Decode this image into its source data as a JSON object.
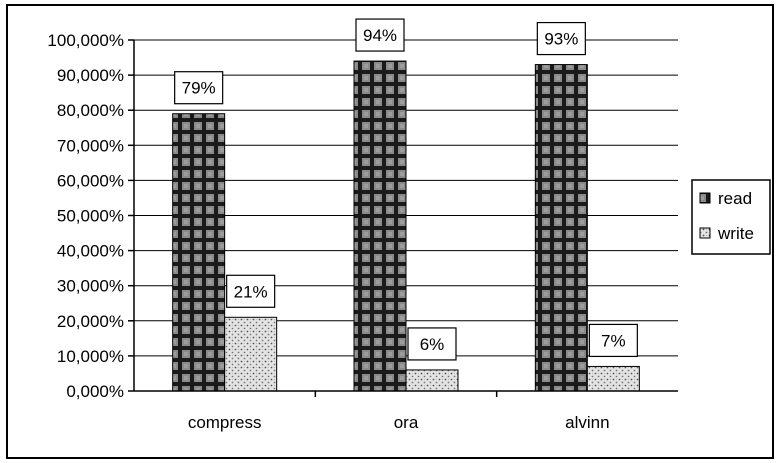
{
  "chart_data": {
    "type": "bar",
    "categories": [
      "compress",
      "ora",
      "alvinn"
    ],
    "series": [
      {
        "name": "read",
        "values": [
          79,
          94,
          93
        ],
        "labels": [
          "79%",
          "94%",
          "93%"
        ],
        "pattern": "checker-dark"
      },
      {
        "name": "write",
        "values": [
          21,
          6,
          7
        ],
        "labels": [
          "21%",
          "6%",
          "7%"
        ],
        "pattern": "dots-light"
      }
    ],
    "ylim": [
      0,
      100
    ],
    "yticks": [
      0,
      10,
      20,
      30,
      40,
      50,
      60,
      70,
      80,
      90,
      100
    ],
    "ytick_labels": [
      "0,000%",
      "10,000%",
      "20,000%",
      "30,000%",
      "40,000%",
      "50,000%",
      "60,000%",
      "70,000%",
      "80,000%",
      "90,000%",
      "100,000%"
    ],
    "grid": true,
    "legend_position": "right",
    "title": "",
    "xlabel": "",
    "ylabel": ""
  }
}
